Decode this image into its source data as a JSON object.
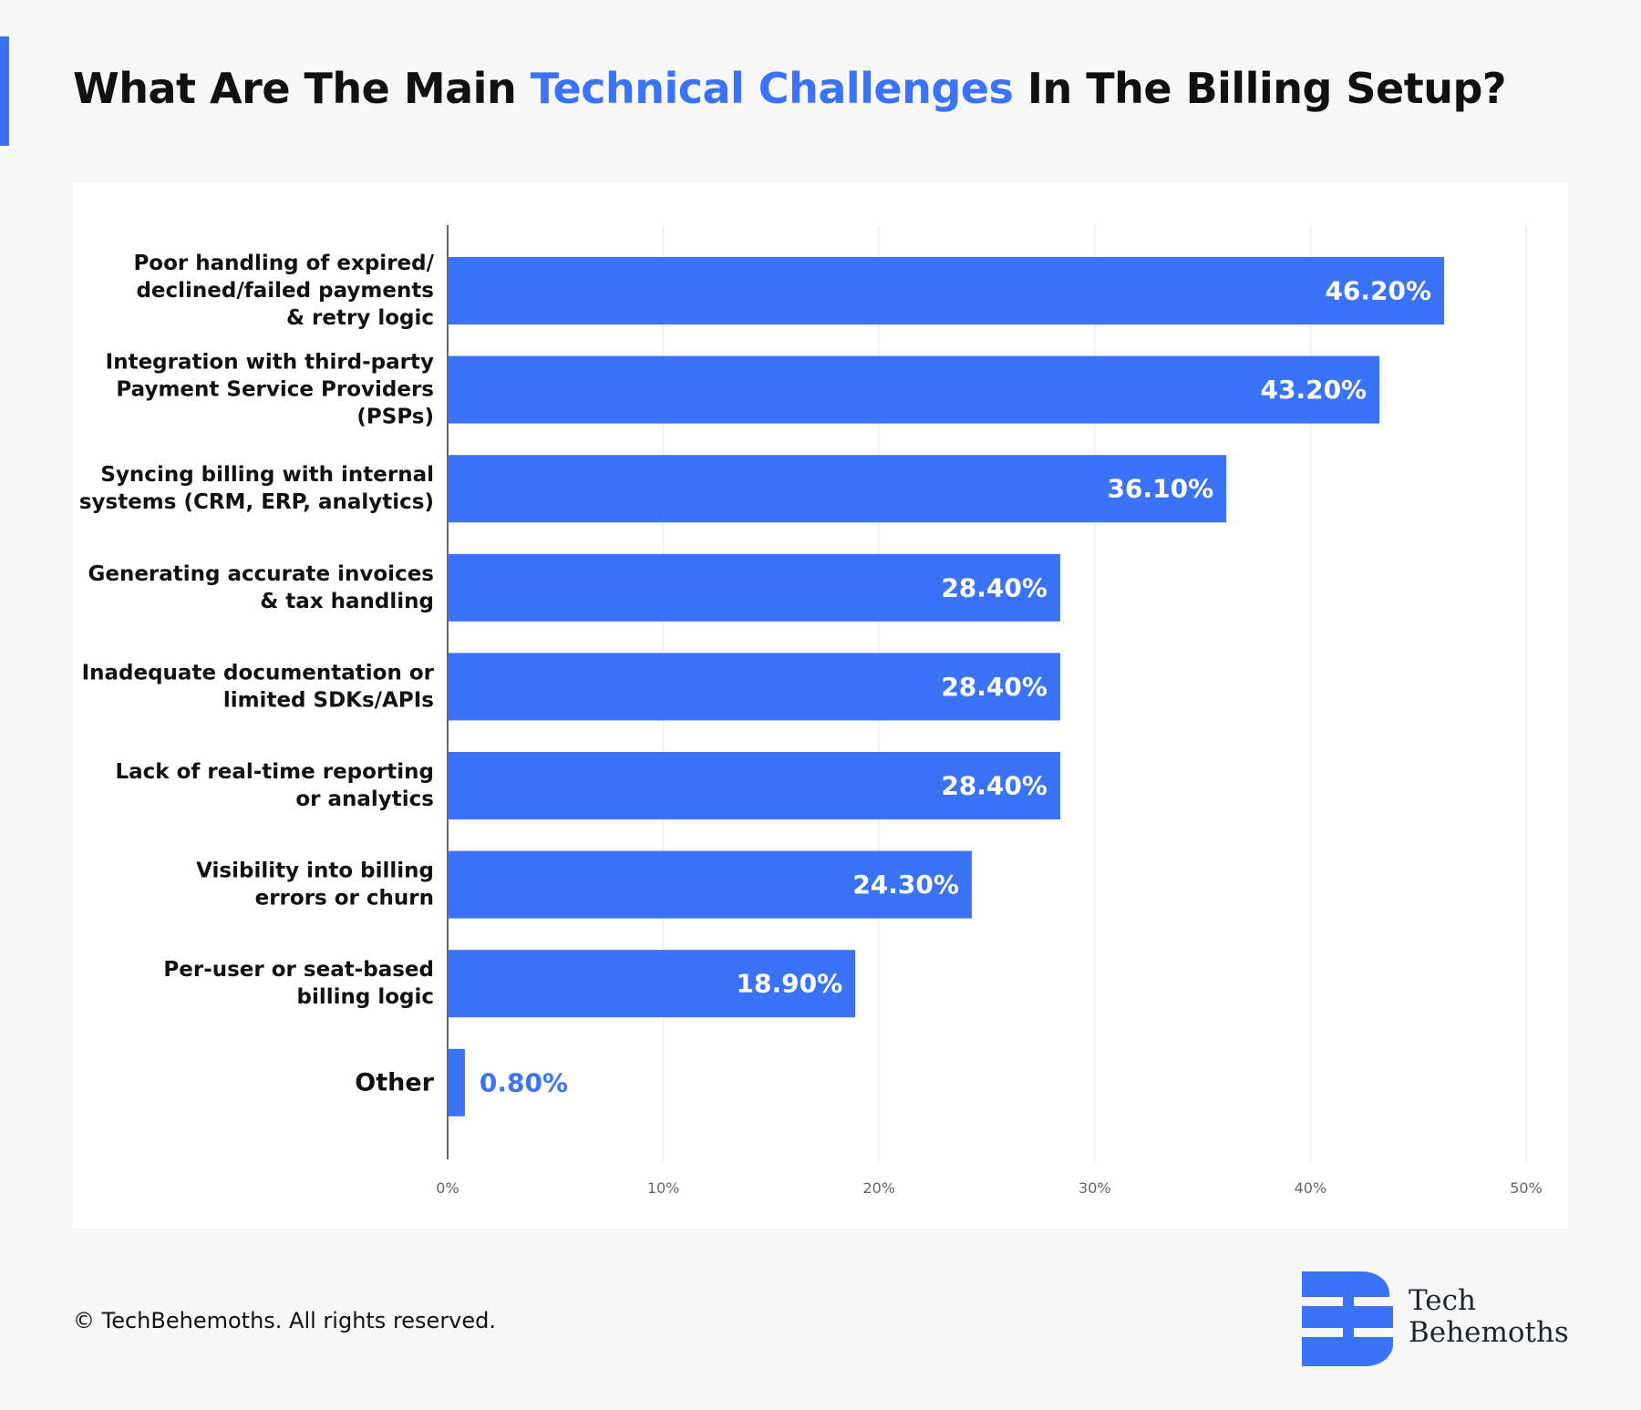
{
  "header": {
    "title_before": "What Are The Main ",
    "title_highlight": "Technical Challenges",
    "title_after": " In The Billing Setup?"
  },
  "colors": {
    "accent": "#3a72f8",
    "bar": "#3a72f8",
    "gridline": "#eeeeee",
    "axis": "#666666"
  },
  "chart_data": {
    "type": "bar",
    "orientation": "horizontal",
    "categories": [
      [
        "Poor handling of expired/",
        "declined/failed payments",
        "& retry logic"
      ],
      [
        "Integration with third-party",
        "Payment Service Providers",
        "(PSPs)"
      ],
      [
        "Syncing billing with internal",
        "systems (CRM, ERP, analytics)"
      ],
      [
        "Generating accurate invoices",
        "& tax handling"
      ],
      [
        "Inadequate documentation or",
        "limited SDKs/APIs"
      ],
      [
        "Lack of real-time reporting",
        "or analytics"
      ],
      [
        "Visibility into billing",
        "errors or churn"
      ],
      [
        "Per-user or seat-based",
        "billing logic"
      ],
      [
        "Other"
      ]
    ],
    "values": [
      46.2,
      43.2,
      36.1,
      28.4,
      28.4,
      28.4,
      24.3,
      18.9,
      0.8
    ],
    "value_labels": [
      "46.20%",
      "43.20%",
      "36.10%",
      "28.40%",
      "28.40%",
      "28.40%",
      "24.30%",
      "18.90%",
      "0.80%"
    ],
    "xlim": [
      0,
      50
    ],
    "ticks": [
      0,
      10,
      20,
      30,
      40,
      50
    ],
    "tick_labels": [
      "0%",
      "10%",
      "20%",
      "30%",
      "40%",
      "50%"
    ],
    "grid": true,
    "title": "What Are The Main Technical Challenges In The Billing Setup?"
  },
  "footer": {
    "copyright": "© TechBehemoths. All rights reserved."
  },
  "brand": {
    "line1": "Tech",
    "line2": "Behemoths",
    "logo_icon": "techbehemoths-logo-icon"
  }
}
